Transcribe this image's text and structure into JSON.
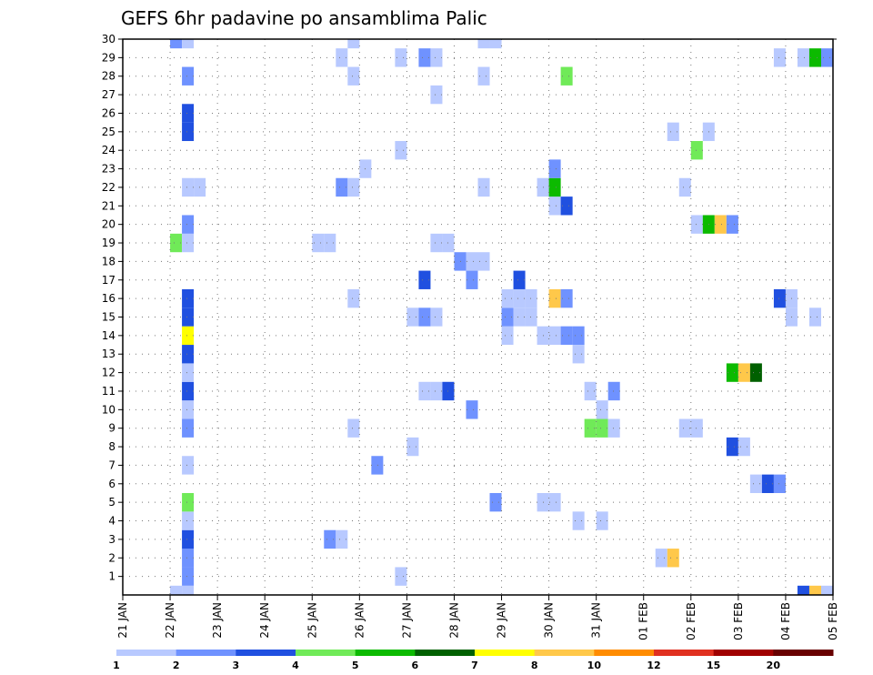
{
  "chart_data": {
    "type": "heatmap",
    "title": "GEFS 6hr padavine po ansamblima Palic",
    "xlabel": "",
    "ylabel": "",
    "x_tick_labels": [
      "21 JAN",
      "22 JAN",
      "23 JAN",
      "24 JAN",
      "25 JAN",
      "26 JAN",
      "27 JAN",
      "28 JAN",
      "29 JAN",
      "30 JAN",
      "31 JAN",
      "01 FEB",
      "02 FEB",
      "03 FEB",
      "04 FEB",
      "05 FEB"
    ],
    "x_range_days": [
      0,
      15
    ],
    "y_range": [
      0,
      30
    ],
    "y_ticks": [
      1,
      2,
      3,
      4,
      5,
      6,
      7,
      8,
      9,
      10,
      11,
      12,
      13,
      14,
      15,
      16,
      17,
      18,
      19,
      20,
      21,
      22,
      23,
      24,
      25,
      26,
      27,
      28,
      29,
      30
    ],
    "grid": true,
    "colorbar": {
      "placement": "bottom",
      "levels": [
        "1",
        "2",
        "3",
        "4",
        "5",
        "6",
        "7",
        "8",
        "10",
        "12",
        "15",
        "20"
      ],
      "colors": [
        "#b8c9ff",
        "#6f92ff",
        "#2050e0",
        "#70ea58",
        "#0cba00",
        "#006000",
        "#ffff00",
        "#ffc84a",
        "#ff8c00",
        "#e03020",
        "#a00000",
        "#680000"
      ]
    },
    "cells": [
      {
        "x": 1.0,
        "y": 0,
        "v": 1
      },
      {
        "x": 1.25,
        "y": 0,
        "v": 1
      },
      {
        "x": 1.25,
        "y": 1,
        "v": 2
      },
      {
        "x": 1.25,
        "y": 2,
        "v": 2
      },
      {
        "x": 1.25,
        "y": 3,
        "v": 3
      },
      {
        "x": 1.25,
        "y": 4,
        "v": 1
      },
      {
        "x": 1.25,
        "y": 5,
        "v": 4
      },
      {
        "x": 1.25,
        "y": 7,
        "v": 1
      },
      {
        "x": 1.25,
        "y": 9,
        "v": 2
      },
      {
        "x": 1.25,
        "y": 10,
        "v": 1
      },
      {
        "x": 1.25,
        "y": 11,
        "v": 3
      },
      {
        "x": 1.25,
        "y": 12,
        "v": 1
      },
      {
        "x": 1.25,
        "y": 13,
        "v": 3
      },
      {
        "x": 1.25,
        "y": 14,
        "v": 7
      },
      {
        "x": 1.25,
        "y": 15,
        "v": 3
      },
      {
        "x": 1.25,
        "y": 16,
        "v": 3
      },
      {
        "x": 1.0,
        "y": 19,
        "v": 4
      },
      {
        "x": 1.25,
        "y": 19,
        "v": 1
      },
      {
        "x": 1.25,
        "y": 20,
        "v": 2
      },
      {
        "x": 1.25,
        "y": 22,
        "v": 1
      },
      {
        "x": 1.5,
        "y": 22,
        "v": 1
      },
      {
        "x": 1.25,
        "y": 25,
        "v": 3
      },
      {
        "x": 1.25,
        "y": 26,
        "v": 3
      },
      {
        "x": 1.25,
        "y": 28,
        "v": 2
      },
      {
        "x": 1.0,
        "y": 30,
        "v": 2
      },
      {
        "x": 1.25,
        "y": 30,
        "v": 1
      },
      {
        "x": 4.25,
        "y": 3,
        "v": 2
      },
      {
        "x": 4.5,
        "y": 3,
        "v": 1
      },
      {
        "x": 4.0,
        "y": 19,
        "v": 1
      },
      {
        "x": 4.25,
        "y": 19,
        "v": 1
      },
      {
        "x": 4.5,
        "y": 22,
        "v": 2
      },
      {
        "x": 4.75,
        "y": 22,
        "v": 1
      },
      {
        "x": 4.75,
        "y": 9,
        "v": 1
      },
      {
        "x": 4.75,
        "y": 16,
        "v": 1
      },
      {
        "x": 5.0,
        "y": 23,
        "v": 1
      },
      {
        "x": 4.75,
        "y": 28,
        "v": 1
      },
      {
        "x": 4.5,
        "y": 29,
        "v": 1
      },
      {
        "x": 4.75,
        "y": 30,
        "v": 1
      },
      {
        "x": 5.25,
        "y": 7,
        "v": 2
      },
      {
        "x": 5.75,
        "y": 1,
        "v": 1
      },
      {
        "x": 6.0,
        "y": 8,
        "v": 1
      },
      {
        "x": 5.75,
        "y": 24,
        "v": 1
      },
      {
        "x": 5.75,
        "y": 29,
        "v": 1
      },
      {
        "x": 6.0,
        "y": 15,
        "v": 1
      },
      {
        "x": 6.25,
        "y": 15,
        "v": 2
      },
      {
        "x": 6.5,
        "y": 15,
        "v": 1
      },
      {
        "x": 6.25,
        "y": 11,
        "v": 1
      },
      {
        "x": 6.5,
        "y": 11,
        "v": 1
      },
      {
        "x": 6.75,
        "y": 11,
        "v": 3
      },
      {
        "x": 6.25,
        "y": 17,
        "v": 3
      },
      {
        "x": 6.5,
        "y": 19,
        "v": 1
      },
      {
        "x": 6.75,
        "y": 19,
        "v": 1
      },
      {
        "x": 7.0,
        "y": 18,
        "v": 2
      },
      {
        "x": 7.25,
        "y": 18,
        "v": 1
      },
      {
        "x": 7.5,
        "y": 18,
        "v": 1
      },
      {
        "x": 7.25,
        "y": 17,
        "v": 2
      },
      {
        "x": 7.25,
        "y": 10,
        "v": 2
      },
      {
        "x": 6.5,
        "y": 27,
        "v": 1
      },
      {
        "x": 6.25,
        "y": 29,
        "v": 2
      },
      {
        "x": 6.5,
        "y": 29,
        "v": 1
      },
      {
        "x": 7.5,
        "y": 28,
        "v": 1
      },
      {
        "x": 7.5,
        "y": 22,
        "v": 1
      },
      {
        "x": 7.5,
        "y": 30,
        "v": 1
      },
      {
        "x": 7.75,
        "y": 30,
        "v": 1
      },
      {
        "x": 7.75,
        "y": 5,
        "v": 2
      },
      {
        "x": 8.0,
        "y": 14,
        "v": 1
      },
      {
        "x": 8.0,
        "y": 15,
        "v": 2
      },
      {
        "x": 8.25,
        "y": 15,
        "v": 1
      },
      {
        "x": 8.5,
        "y": 15,
        "v": 1
      },
      {
        "x": 8.0,
        "y": 16,
        "v": 1
      },
      {
        "x": 8.25,
        "y": 16,
        "v": 1
      },
      {
        "x": 8.5,
        "y": 16,
        "v": 1
      },
      {
        "x": 8.25,
        "y": 17,
        "v": 3
      },
      {
        "x": 8.75,
        "y": 5,
        "v": 1
      },
      {
        "x": 9.0,
        "y": 5,
        "v": 1
      },
      {
        "x": 8.75,
        "y": 14,
        "v": 1
      },
      {
        "x": 9.0,
        "y": 14,
        "v": 1
      },
      {
        "x": 9.25,
        "y": 14,
        "v": 2
      },
      {
        "x": 9.5,
        "y": 14,
        "v": 2
      },
      {
        "x": 9.5,
        "y": 13,
        "v": 1
      },
      {
        "x": 9.0,
        "y": 16,
        "v": 8
      },
      {
        "x": 9.25,
        "y": 16,
        "v": 2
      },
      {
        "x": 9.0,
        "y": 21,
        "v": 1
      },
      {
        "x": 9.25,
        "y": 21,
        "v": 3
      },
      {
        "x": 8.75,
        "y": 22,
        "v": 1
      },
      {
        "x": 9.0,
        "y": 22,
        "v": 5
      },
      {
        "x": 9.0,
        "y": 23,
        "v": 2
      },
      {
        "x": 9.25,
        "y": 28,
        "v": 4
      },
      {
        "x": 9.5,
        "y": 4,
        "v": 1
      },
      {
        "x": 9.75,
        "y": 9,
        "v": 4
      },
      {
        "x": 10.0,
        "y": 9,
        "v": 4
      },
      {
        "x": 10.25,
        "y": 9,
        "v": 1
      },
      {
        "x": 9.75,
        "y": 11,
        "v": 1
      },
      {
        "x": 10.0,
        "y": 10,
        "v": 1
      },
      {
        "x": 10.25,
        "y": 11,
        "v": 2
      },
      {
        "x": 10.0,
        "y": 4,
        "v": 1
      },
      {
        "x": 11.25,
        "y": 2,
        "v": 1
      },
      {
        "x": 11.5,
        "y": 2,
        "v": 8
      },
      {
        "x": 11.75,
        "y": 9,
        "v": 1
      },
      {
        "x": 12.0,
        "y": 9,
        "v": 1
      },
      {
        "x": 11.5,
        "y": 25,
        "v": 1
      },
      {
        "x": 12.0,
        "y": 24,
        "v": 4
      },
      {
        "x": 11.75,
        "y": 22,
        "v": 1
      },
      {
        "x": 12.25,
        "y": 25,
        "v": 1
      },
      {
        "x": 12.0,
        "y": 20,
        "v": 1
      },
      {
        "x": 12.25,
        "y": 20,
        "v": 5
      },
      {
        "x": 12.5,
        "y": 20,
        "v": 8
      },
      {
        "x": 12.75,
        "y": 20,
        "v": 2
      },
      {
        "x": 12.75,
        "y": 8,
        "v": 3
      },
      {
        "x": 13.0,
        "y": 8,
        "v": 1
      },
      {
        "x": 12.75,
        "y": 12,
        "v": 5
      },
      {
        "x": 13.0,
        "y": 12,
        "v": 8
      },
      {
        "x": 13.25,
        "y": 12,
        "v": 6
      },
      {
        "x": 13.25,
        "y": 6,
        "v": 1
      },
      {
        "x": 13.5,
        "y": 6,
        "v": 3
      },
      {
        "x": 13.75,
        "y": 6,
        "v": 2
      },
      {
        "x": 13.75,
        "y": 16,
        "v": 3
      },
      {
        "x": 14.0,
        "y": 16,
        "v": 1
      },
      {
        "x": 14.0,
        "y": 15,
        "v": 1
      },
      {
        "x": 14.5,
        "y": 15,
        "v": 1
      },
      {
        "x": 13.75,
        "y": 29,
        "v": 1
      },
      {
        "x": 14.25,
        "y": 29,
        "v": 1
      },
      {
        "x": 14.5,
        "y": 29,
        "v": 5
      },
      {
        "x": 14.75,
        "y": 29,
        "v": 2
      },
      {
        "x": 14.25,
        "y": 0,
        "v": 3
      },
      {
        "x": 14.5,
        "y": 0,
        "v": 8
      },
      {
        "x": 14.75,
        "y": 0,
        "v": 1
      }
    ]
  }
}
